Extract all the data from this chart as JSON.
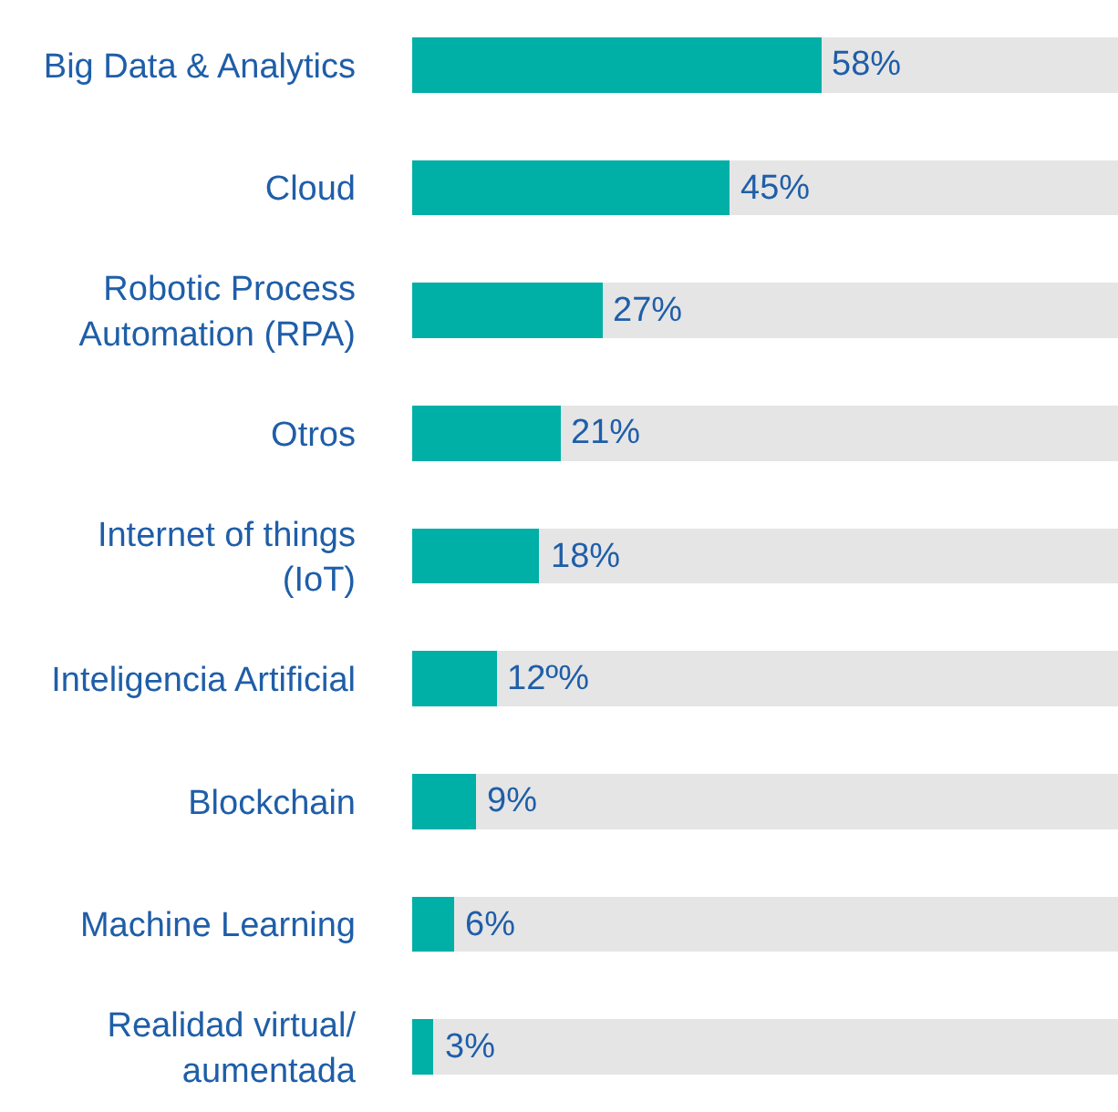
{
  "chart_data": {
    "type": "bar",
    "orientation": "horizontal",
    "stacked": true,
    "categories": [
      "Big Data & Analytics",
      "Cloud",
      "Robotic Process Automation (RPA)",
      "Otros",
      "Internet of things (IoT)",
      "Inteligencia Artificial",
      "Blockchain",
      "Machine Learning",
      "Realidad virtual/ aumentada"
    ],
    "series": [
      {
        "color": "#00afa6",
        "values": [
          58,
          45,
          27,
          21,
          18,
          12,
          9,
          6,
          3
        ],
        "value_labels": [
          "58%",
          "45%",
          "27%",
          "21%",
          "18%",
          "12º%",
          "9%",
          "6%",
          "3%"
        ]
      },
      {
        "color": "#e5e5e6",
        "values": [
          42,
          55,
          73,
          79,
          82,
          88,
          91,
          94,
          97
        ]
      }
    ],
    "xlim": [
      0,
      100
    ],
    "tick_labels": "y"
  }
}
